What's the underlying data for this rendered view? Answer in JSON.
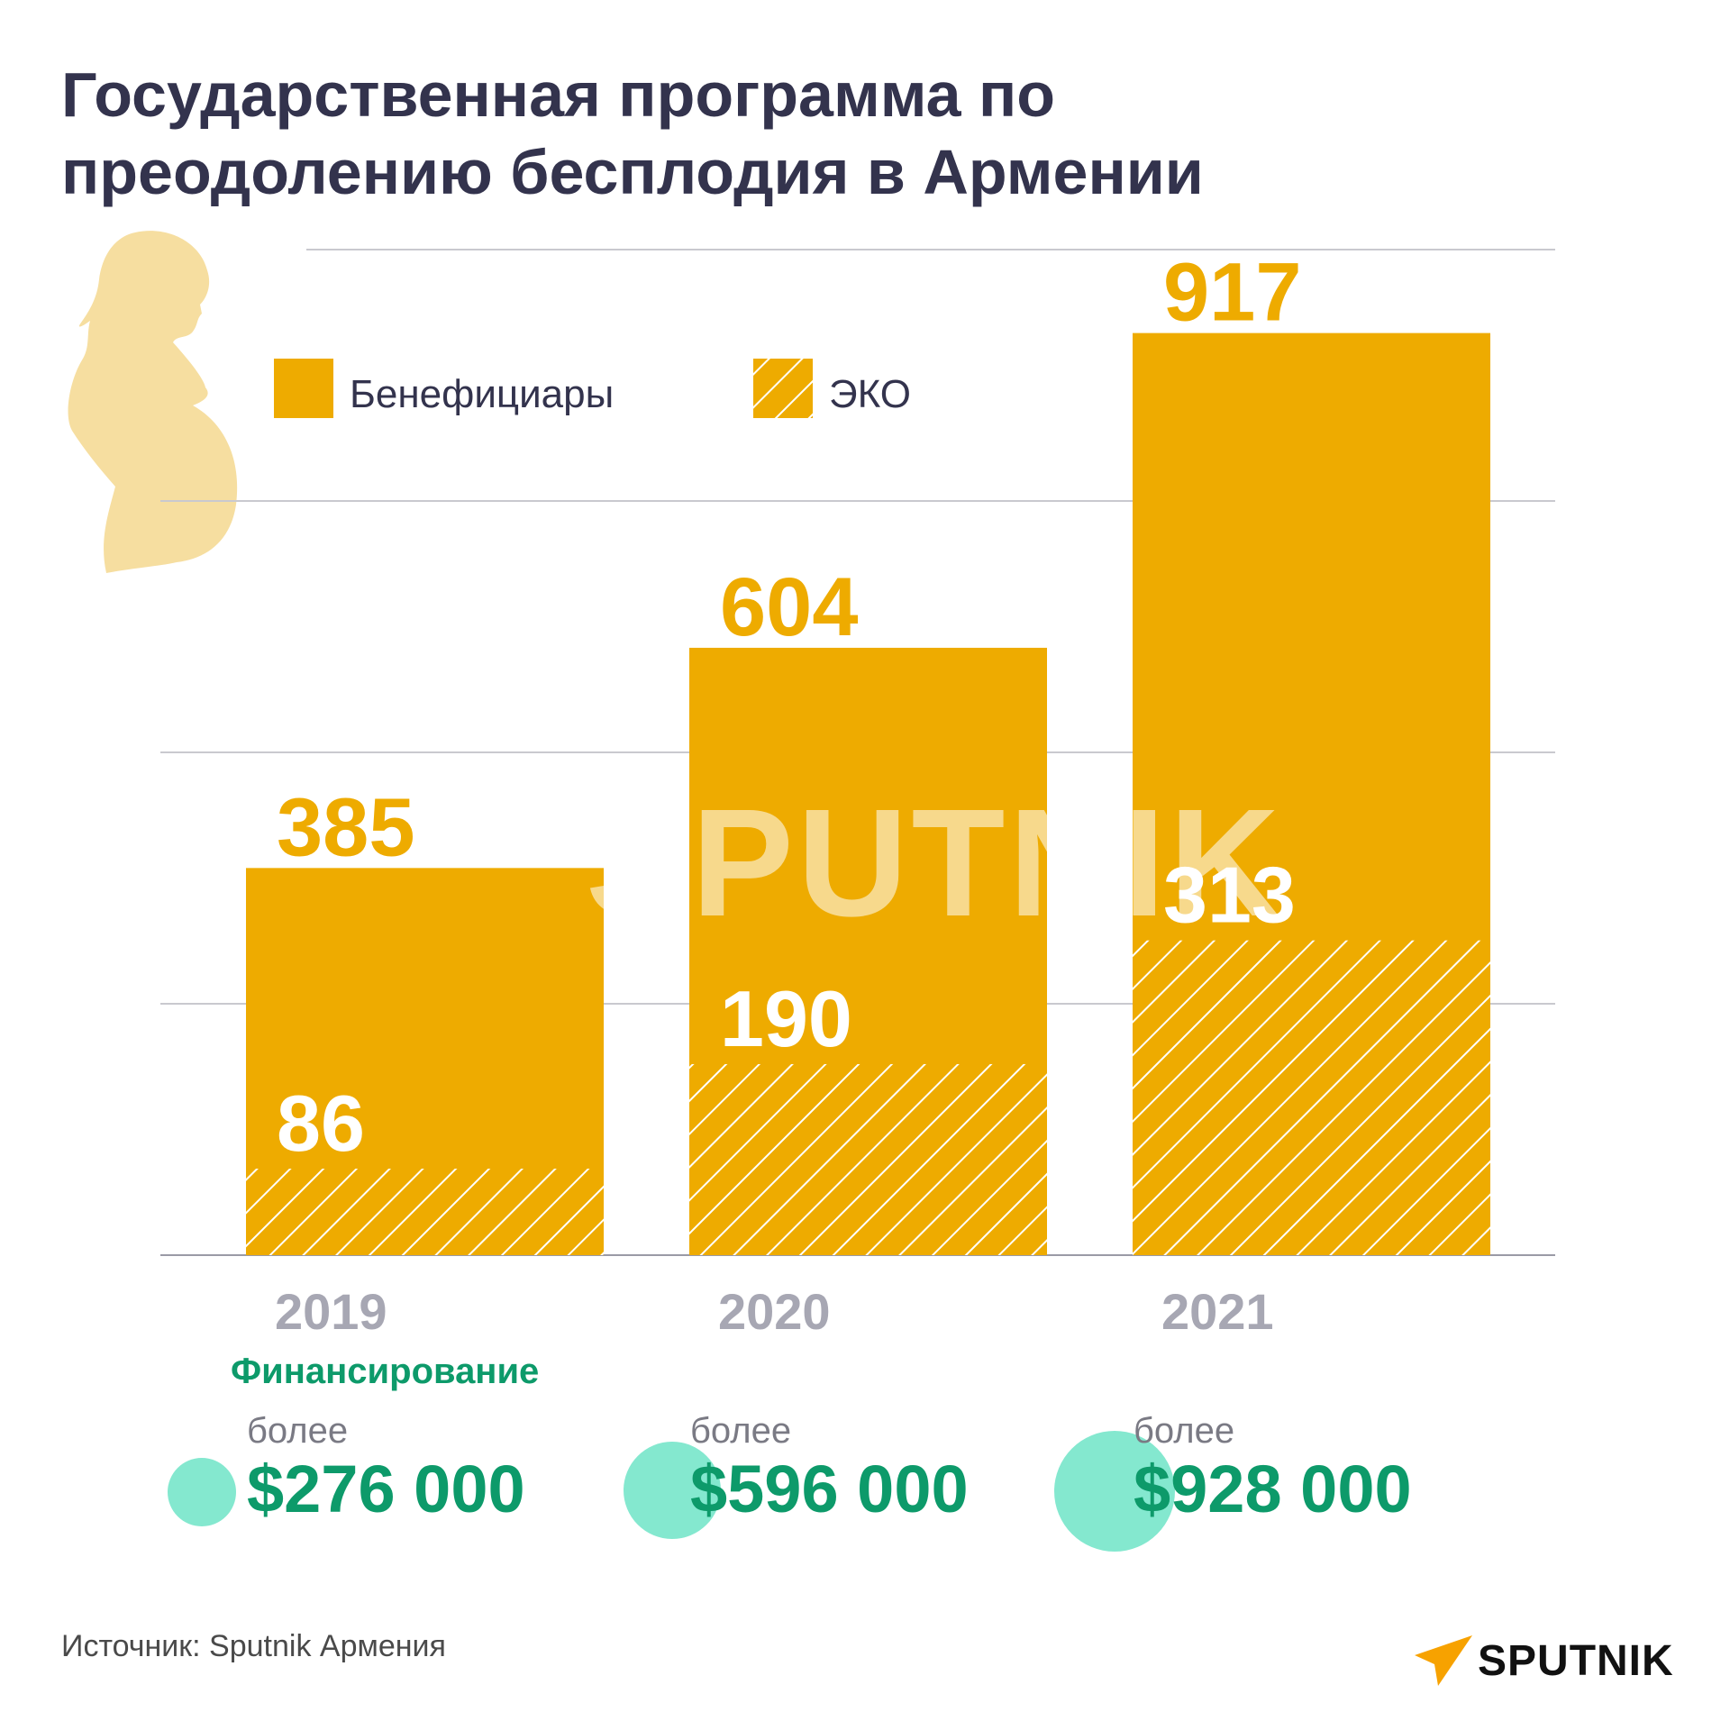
{
  "title_lines": [
    "Государственная программа по",
    "преодолению бесплодия в Армении"
  ],
  "legend": {
    "beneficiaries": "Бенефициары",
    "ivf": "ЭКО"
  },
  "colors": {
    "bar": "#eeab00",
    "title": "#33334d",
    "funding": "#0d9a6a",
    "circle": "#84e8cf",
    "silhouette": "#f6dea0",
    "axis": "#a7a7b3"
  },
  "chart_data": {
    "type": "bar",
    "title": "Государственная программа по преодолению бесплодия в Армении",
    "categories": [
      "2019",
      "2020",
      "2021"
    ],
    "series": [
      {
        "name": "Бенефициары",
        "values": [
          385,
          604,
          917
        ]
      },
      {
        "name": "ЭКО",
        "values": [
          86,
          190,
          313
        ]
      }
    ],
    "ylim": [
      0,
      1000
    ],
    "grid": true,
    "legend_position": "top-left",
    "xlabel": "",
    "ylabel": ""
  },
  "funding": {
    "label": "Финансирование",
    "items": [
      {
        "prefix": "более",
        "amount": "$276 000"
      },
      {
        "prefix": "более",
        "amount": "$596 000"
      },
      {
        "prefix": "более",
        "amount": "$928 000"
      }
    ]
  },
  "watermark": "SPUTNIK",
  "source": "Источник: Sputnik Армения",
  "logo": {
    "text": "SPUTNIK"
  }
}
